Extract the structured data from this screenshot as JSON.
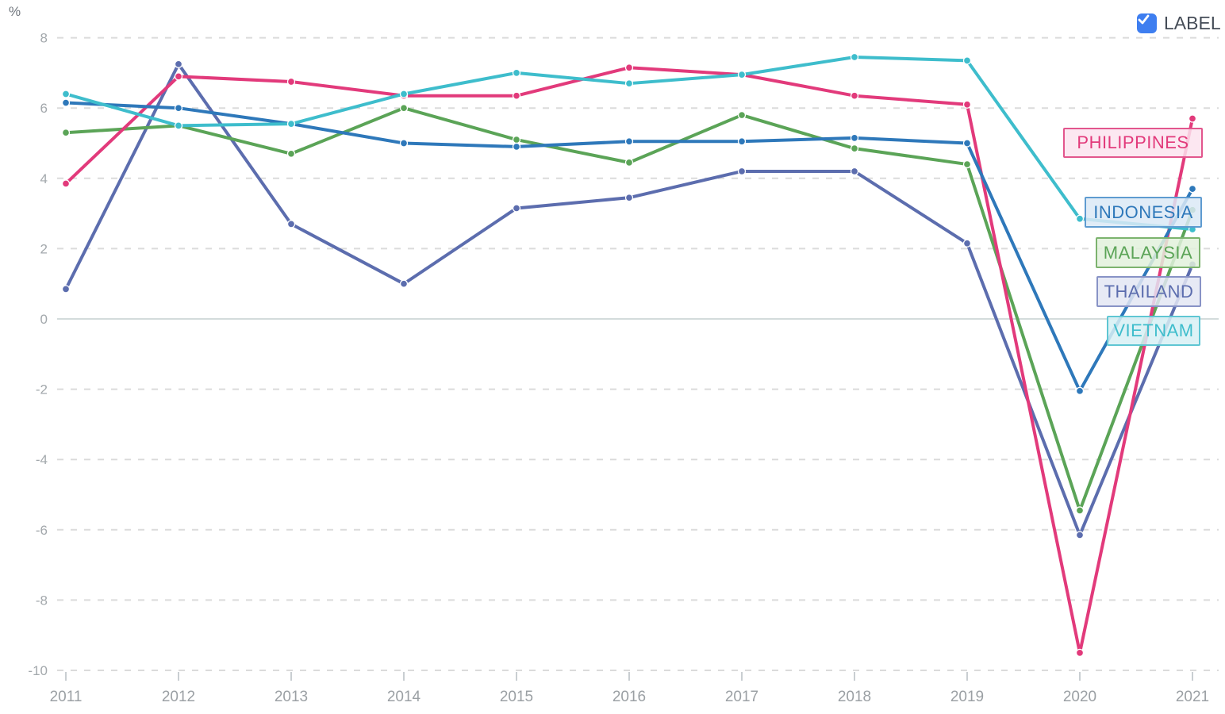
{
  "unit_label": "%",
  "legend_control": {
    "label": "LABEL",
    "checked": true,
    "checkbox_color": "#3E7EF0"
  },
  "chart_data": {
    "type": "line",
    "title": "",
    "xlabel": "",
    "ylabel": "%",
    "x": [
      2011,
      2012,
      2013,
      2014,
      2015,
      2016,
      2017,
      2018,
      2019,
      2020,
      2021
    ],
    "ylim": [
      -10,
      8
    ],
    "yticks": [
      8,
      6,
      4,
      2,
      0,
      -2,
      -4,
      -6,
      -8,
      -10
    ],
    "grid": "horizontal-dashed, solid zero line",
    "legend_position": "right-inline-boxed-labels",
    "series": [
      {
        "name": "PHILIPPINES",
        "color": "#E23A7B",
        "label_border": "#E2568D",
        "label_bg": "#FBE3EE",
        "values": [
          3.85,
          6.9,
          6.75,
          6.35,
          6.35,
          7.15,
          6.95,
          6.35,
          6.1,
          -9.5,
          5.7
        ]
      },
      {
        "name": "INDONESIA",
        "color": "#2E78BA",
        "label_border": "#5E9BD0",
        "label_bg": "#DBE9F6",
        "values": [
          6.15,
          6.0,
          5.55,
          5.0,
          4.9,
          5.05,
          5.05,
          5.15,
          5.0,
          -2.05,
          3.7
        ]
      },
      {
        "name": "MALAYSIA",
        "color": "#5BA457",
        "label_border": "#7CB36E",
        "label_bg": "#E2F1DC",
        "values": [
          5.3,
          5.5,
          4.7,
          6.0,
          5.1,
          4.45,
          5.8,
          4.85,
          4.4,
          -5.45,
          3.1
        ]
      },
      {
        "name": "THAILAND",
        "color": "#5C6DAE",
        "label_border": "#8893C6",
        "label_bg": "#E3E6F3",
        "values": [
          0.85,
          7.25,
          2.7,
          1.0,
          3.15,
          3.45,
          4.2,
          4.2,
          2.15,
          -6.15,
          1.55
        ]
      },
      {
        "name": "VIETNAM",
        "color": "#3EBDCC",
        "label_border": "#5FC6D3",
        "label_bg": "#D7F0F4",
        "values": [
          6.4,
          5.5,
          5.55,
          6.4,
          7.0,
          6.7,
          6.95,
          7.45,
          7.35,
          2.85,
          2.55
        ]
      }
    ]
  }
}
